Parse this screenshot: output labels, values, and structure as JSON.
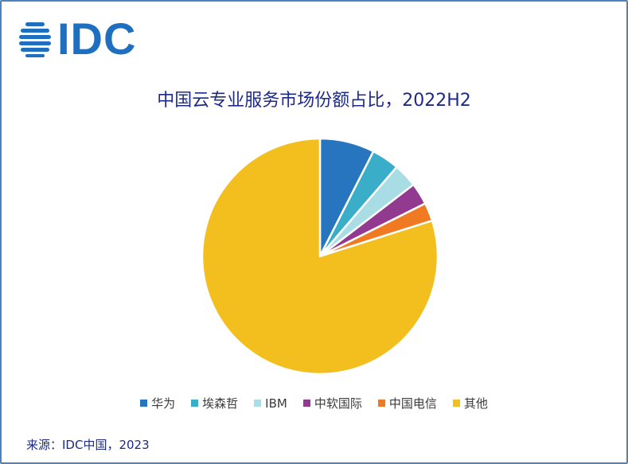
{
  "logo": {
    "text": "IDC"
  },
  "chart_data": {
    "type": "pie",
    "title": "中国云专业服务市场份额占比，2022H2",
    "legend_position": "bottom",
    "categories": [
      "华为",
      "埃森哲",
      "IBM",
      "中软国际",
      "中国电信",
      "其他"
    ],
    "values": [
      7.5,
      3.8,
      3.3,
      3.0,
      2.5,
      79.9
    ],
    "colors": [
      "#2675be",
      "#3aaec9",
      "#a9dde6",
      "#913a8f",
      "#ef7a22",
      "#f3bf1f"
    ]
  },
  "source": "来源：IDC中国，2023"
}
